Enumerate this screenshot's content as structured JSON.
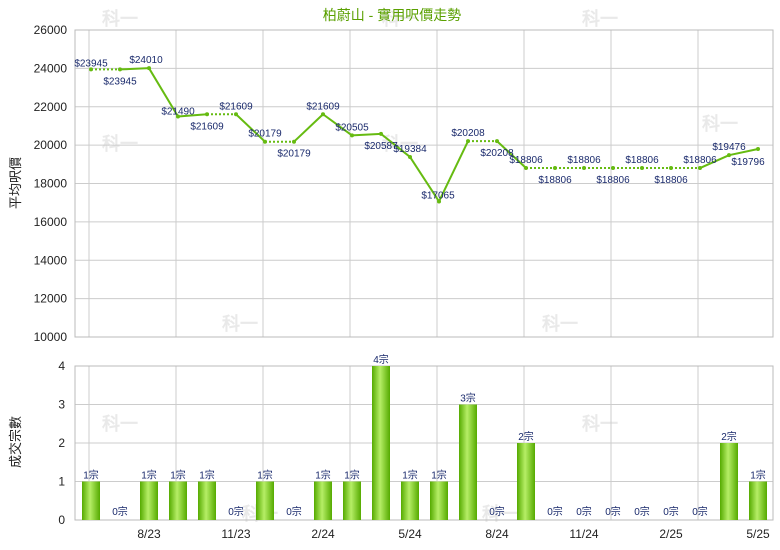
{
  "title": "柏蔚山 - 實用呎價走勢",
  "watermark": "科一",
  "colors": {
    "line": "#66bb11",
    "bar_light": "#b6ee66",
    "bar_dark": "#55aa00",
    "label": "#1a2a6c",
    "title": "#5aa000",
    "grid": "#cccccc"
  },
  "chart_data": [
    {
      "type": "line",
      "ylabel": "平均呎價",
      "ylim": [
        10000,
        26000
      ],
      "yticks": [
        10000,
        12000,
        14000,
        16000,
        18000,
        20000,
        22000,
        24000,
        26000
      ],
      "grid": true,
      "points": [
        {
          "i": 0,
          "y": 23945,
          "label": "$23945"
        },
        {
          "i": 1,
          "y": 23945,
          "label": "$23945"
        },
        {
          "i": 2,
          "y": 24010,
          "label": "$24010"
        },
        {
          "i": 3,
          "y": 21490,
          "label": "$21490"
        },
        {
          "i": 4,
          "y": 21609,
          "label": "$21609"
        },
        {
          "i": 5,
          "y": 21609,
          "label": "$21609"
        },
        {
          "i": 6,
          "y": 20179,
          "label": "$20179"
        },
        {
          "i": 7,
          "y": 20179,
          "label": "$20179"
        },
        {
          "i": 8,
          "y": 21609,
          "label": "$21609"
        },
        {
          "i": 9,
          "y": 20505,
          "label": "$20505"
        },
        {
          "i": 10,
          "y": 20587,
          "label": "$20587"
        },
        {
          "i": 11,
          "y": 19384,
          "label": "$19384"
        },
        {
          "i": 12,
          "y": 17065,
          "label": "$17065"
        },
        {
          "i": 13,
          "y": 20208,
          "label": "$20208"
        },
        {
          "i": 14,
          "y": 20208,
          "label": "$20208"
        },
        {
          "i": 15,
          "y": 18806,
          "label": "$18806"
        },
        {
          "i": 16,
          "y": 18806,
          "label": "$18806"
        },
        {
          "i": 17,
          "y": 18806,
          "label": "$18806"
        },
        {
          "i": 18,
          "y": 18806,
          "label": "$18806"
        },
        {
          "i": 19,
          "y": 18806,
          "label": "$18806"
        },
        {
          "i": 20,
          "y": 18806,
          "label": "$18806"
        },
        {
          "i": 21,
          "y": 18806,
          "label": "$18806"
        },
        {
          "i": 22,
          "y": 19476,
          "label": "$19476"
        },
        {
          "i": 23,
          "y": 19796,
          "label": "$19796"
        }
      ],
      "dashed_segments": [
        [
          0,
          1
        ],
        [
          4,
          5
        ],
        [
          6,
          7
        ],
        [
          13,
          14
        ],
        [
          15,
          16
        ],
        [
          16,
          17
        ],
        [
          17,
          18
        ],
        [
          18,
          19
        ],
        [
          19,
          20
        ],
        [
          20,
          21
        ]
      ]
    },
    {
      "type": "bar",
      "ylabel": "成交宗數",
      "ylim": [
        0,
        4
      ],
      "yticks": [
        0,
        1,
        2,
        3,
        4
      ],
      "grid": true,
      "values": [
        1,
        0,
        1,
        1,
        1,
        0,
        1,
        0,
        1,
        1,
        4,
        1,
        1,
        3,
        0,
        2,
        0,
        0,
        0,
        0,
        0,
        0,
        2,
        1
      ],
      "value_labels": [
        "1宗",
        "0宗",
        "1宗",
        "1宗",
        "1宗",
        "0宗",
        "1宗",
        "0宗",
        "1宗",
        "1宗",
        "4宗",
        "1宗",
        "1宗",
        "3宗",
        "0宗",
        "2宗",
        "0宗",
        "0宗",
        "0宗",
        "0宗",
        "0宗",
        "0宗",
        "2宗",
        "1宗"
      ],
      "x_ticks": [
        {
          "i": 2,
          "label": "8/23"
        },
        {
          "i": 5,
          "label": "11/23"
        },
        {
          "i": 8,
          "label": "2/24"
        },
        {
          "i": 11,
          "label": "5/24"
        },
        {
          "i": 14,
          "label": "8/24"
        },
        {
          "i": 17,
          "label": "11/24"
        },
        {
          "i": 20,
          "label": "2/25"
        },
        {
          "i": 23,
          "label": "5/25"
        }
      ]
    }
  ]
}
